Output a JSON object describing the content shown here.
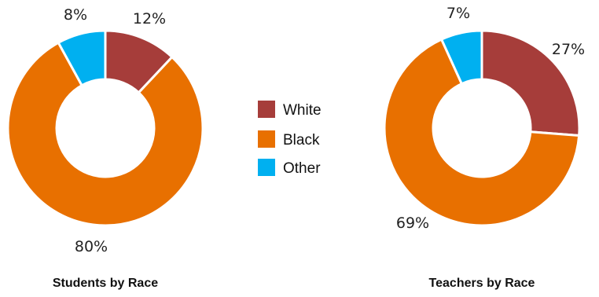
{
  "chart_data": [
    {
      "type": "pie",
      "title": "Students by Race",
      "categories": [
        "White",
        "Black",
        "Other"
      ],
      "values": [
        12,
        80,
        8
      ],
      "value_labels": [
        "12%",
        "80%",
        "8%"
      ]
    },
    {
      "type": "pie",
      "title": "Teachers by Race",
      "categories": [
        "White",
        "Black",
        "Other"
      ],
      "values": [
        27,
        69,
        7
      ],
      "value_labels": [
        "27%",
        "69%",
        "7%"
      ]
    }
  ],
  "legend": {
    "placement": "center",
    "items": [
      {
        "label": "White",
        "color": "#a63d3a"
      },
      {
        "label": "Black",
        "color": "#e87000"
      },
      {
        "label": "Other",
        "color": "#00b0f0"
      }
    ]
  },
  "style": {
    "donut": true
  }
}
